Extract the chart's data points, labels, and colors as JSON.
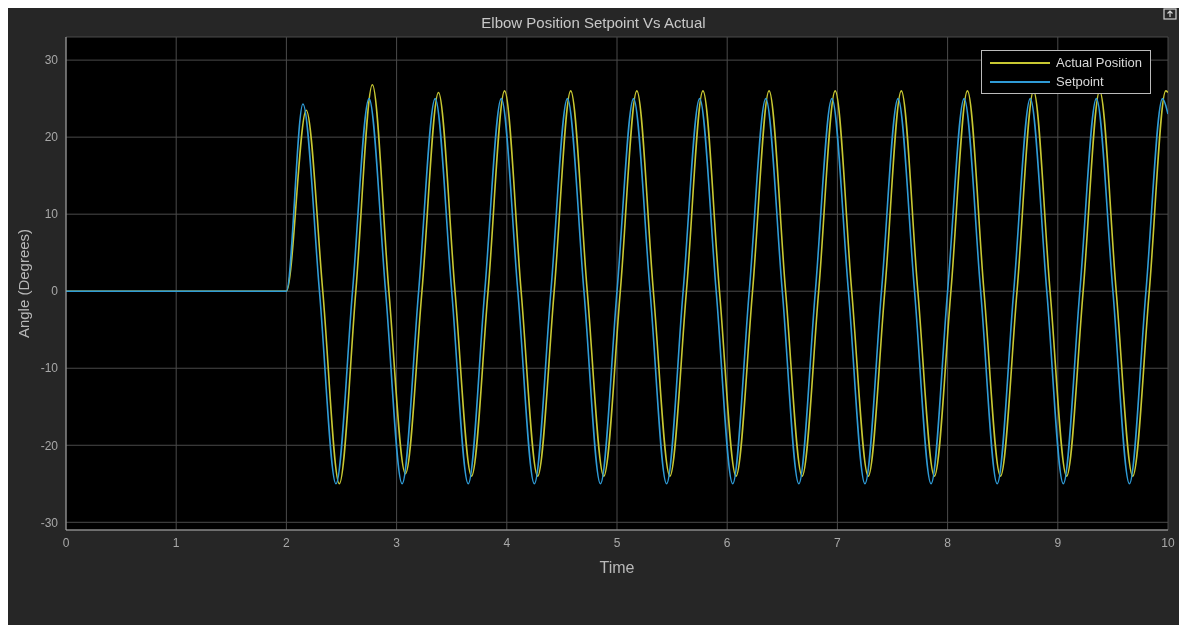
{
  "chart_data": {
    "type": "line",
    "title": "Elbow Position Setpoint Vs Actual",
    "xlabel": "Time",
    "ylabel": "Angle (Degrees)",
    "xlim": [
      0,
      10
    ],
    "xticks": [
      0,
      1,
      2,
      3,
      4,
      5,
      6,
      7,
      8,
      9,
      10
    ],
    "ylim": [
      -31,
      33
    ],
    "yticks": [
      -30,
      -20,
      -10,
      0,
      10,
      20,
      30
    ],
    "grid": true,
    "legend": "top right",
    "marker": "none",
    "line_style": "solid",
    "series": [
      {
        "name": "Actual Position",
        "color": "#c8c832",
        "x": [
          0,
          2,
          2.18,
          2.33,
          2.48,
          2.63,
          2.78,
          2.93,
          3.08,
          3.23,
          3.38,
          3.53,
          3.68,
          3.83,
          3.98,
          4.13,
          4.28,
          4.43,
          4.58,
          4.73,
          4.88,
          5.03,
          5.18,
          5.33,
          5.48,
          5.63,
          5.78,
          5.93,
          6.08,
          6.23,
          6.38,
          6.53,
          6.68,
          6.83,
          6.98,
          7.13,
          7.28,
          7.43,
          7.58,
          7.73,
          7.88,
          8.03,
          8.18,
          8.33,
          8.48,
          8.63,
          8.78,
          8.93,
          9.08,
          9.23,
          9.38,
          9.53,
          9.68,
          9.83,
          9.98,
          10
        ],
        "values": [
          0,
          0,
          23.5,
          0,
          -25,
          0,
          26.8,
          0,
          -23.7,
          0,
          25.8,
          0,
          -24,
          0,
          26,
          0,
          -24,
          0,
          26,
          0,
          -24,
          0,
          26,
          0,
          -24,
          0,
          26,
          0,
          -24,
          0,
          26,
          0,
          -24,
          0,
          26,
          0,
          -24,
          0,
          26,
          0,
          -24,
          0,
          26,
          0,
          -24,
          0,
          26,
          0,
          -24,
          0,
          26,
          0,
          -24,
          0,
          26,
          25.8
        ]
      },
      {
        "name": "Setpoint",
        "color": "#2f9bd6",
        "x": [
          0,
          2,
          2.15,
          2.3,
          2.45,
          2.6,
          2.75,
          2.9,
          3.05,
          3.2,
          3.35,
          3.5,
          3.65,
          3.8,
          3.95,
          4.1,
          4.25,
          4.4,
          4.55,
          4.7,
          4.85,
          5,
          5.15,
          5.3,
          5.45,
          5.6,
          5.75,
          5.9,
          6.05,
          6.2,
          6.35,
          6.5,
          6.65,
          6.8,
          6.95,
          7.1,
          7.25,
          7.4,
          7.55,
          7.7,
          7.85,
          8,
          8.15,
          8.3,
          8.45,
          8.6,
          8.75,
          8.9,
          9.05,
          9.2,
          9.35,
          9.5,
          9.65,
          9.8,
          9.95,
          10
        ],
        "values": [
          0,
          0,
          24.3,
          0,
          -25,
          0,
          25,
          0,
          -25,
          0,
          25,
          0,
          -25,
          0,
          25,
          0,
          -25,
          0,
          25,
          0,
          -25,
          0,
          25,
          0,
          -25,
          0,
          25,
          0,
          -25,
          0,
          25,
          0,
          -25,
          0,
          25,
          0,
          -25,
          0,
          25,
          0,
          -25,
          0,
          25,
          0,
          -25,
          0,
          25,
          0,
          -25,
          0,
          25,
          0,
          -25,
          0,
          25,
          23
        ]
      }
    ]
  }
}
